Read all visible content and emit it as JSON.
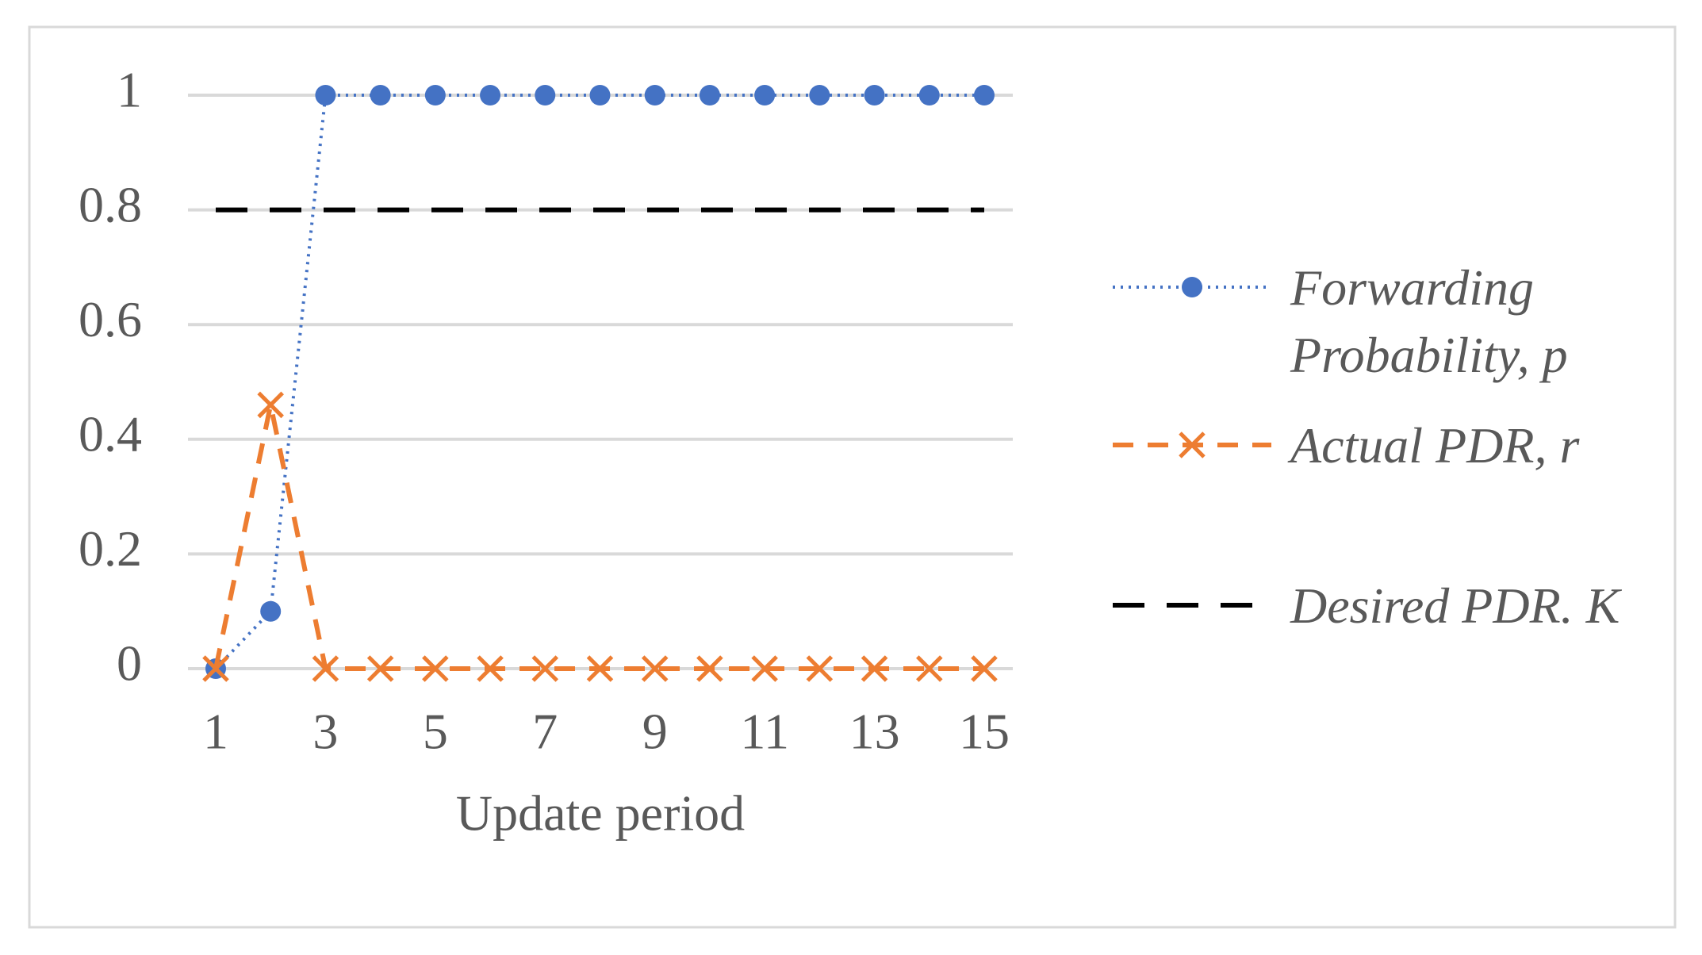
{
  "chart_data": {
    "type": "line",
    "categories": [
      "1",
      null,
      "3",
      null,
      "5",
      null,
      "7",
      null,
      "9",
      null,
      "11",
      null,
      "13",
      null,
      "15"
    ],
    "x_label": "Update period",
    "series": [
      {
        "name": "Forwarding Probability, p",
        "color": "#4472c4",
        "line_style": "dotted",
        "marker": "circle",
        "values": [
          0,
          0.1,
          1,
          1,
          1,
          1,
          1,
          1,
          1,
          1,
          1,
          1,
          1,
          1,
          1
        ]
      },
      {
        "name": "Actual PDR, r",
        "color": "#ed7d31",
        "line_style": "dashed",
        "marker": "x",
        "values": [
          0,
          0.46,
          0,
          0,
          0,
          0,
          0,
          0,
          0,
          0,
          0,
          0,
          0,
          0,
          0
        ]
      },
      {
        "name": "Desired PDR. K",
        "color": "#000000",
        "line_style": "long-dashed",
        "marker": "none",
        "values": [
          0.8,
          0.8,
          0.8,
          0.8,
          0.8,
          0.8,
          0.8,
          0.8,
          0.8,
          0.8,
          0.8,
          0.8,
          0.8,
          0.8,
          0.8
        ]
      }
    ],
    "ylim": [
      0,
      1
    ],
    "yticks": [
      0,
      0.2,
      0.4,
      0.6,
      0.8,
      1
    ],
    "grid": true,
    "legend": "right"
  }
}
